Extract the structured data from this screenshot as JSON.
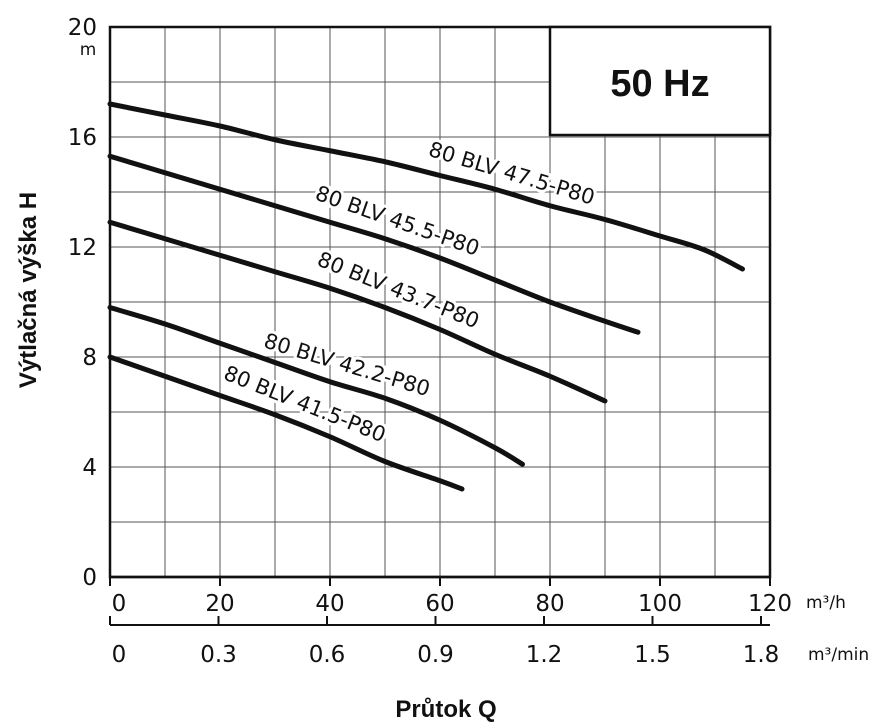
{
  "chart_data": {
    "type": "line",
    "annotation": "50 Hz",
    "xlabel": "Průtok Q",
    "ylabel": "Výtlačná výška H",
    "y_unit": "m",
    "x_unit_primary": "m³/h",
    "x_unit_secondary": "m³/min",
    "xlim": [
      0,
      120
    ],
    "ylim": [
      0,
      20
    ],
    "x_ticks": [
      "0",
      "20",
      "40",
      "60",
      "80",
      "100",
      "120"
    ],
    "x_ticks_secondary": [
      "0",
      "0.3",
      "0.6",
      "0.9",
      "1.2",
      "1.5",
      "1.8"
    ],
    "y_ticks": [
      "0",
      "4",
      "8",
      "12",
      "16",
      "20"
    ],
    "grid": true,
    "series": [
      {
        "name": "80 BLV 47.5-P80",
        "x": [
          0,
          10,
          20,
          30,
          40,
          50,
          60,
          70,
          80,
          90,
          100,
          108,
          115
        ],
        "y": [
          17.2,
          16.8,
          16.4,
          15.9,
          15.5,
          15.1,
          14.6,
          14.1,
          13.5,
          13.0,
          12.4,
          11.9,
          11.2
        ]
      },
      {
        "name": "80 BLV 45.5-P80",
        "x": [
          0,
          10,
          20,
          30,
          40,
          50,
          60,
          70,
          80,
          90,
          96
        ],
        "y": [
          15.3,
          14.7,
          14.1,
          13.5,
          12.9,
          12.3,
          11.6,
          10.8,
          10.0,
          9.3,
          8.9
        ]
      },
      {
        "name": "80 BLV 43.7-P80",
        "x": [
          0,
          10,
          20,
          30,
          40,
          50,
          60,
          70,
          80,
          90
        ],
        "y": [
          12.9,
          12.3,
          11.7,
          11.1,
          10.5,
          9.8,
          9.0,
          8.1,
          7.3,
          6.4
        ]
      },
      {
        "name": "80 BLV 42.2-P80",
        "x": [
          0,
          10,
          20,
          30,
          40,
          50,
          60,
          70,
          75
        ],
        "y": [
          9.8,
          9.2,
          8.5,
          7.8,
          7.1,
          6.5,
          5.7,
          4.7,
          4.1
        ]
      },
      {
        "name": "80 BLV 41.5-P80",
        "x": [
          0,
          10,
          20,
          30,
          40,
          50,
          60,
          64
        ],
        "y": [
          8.0,
          7.3,
          6.6,
          5.9,
          5.1,
          4.2,
          3.5,
          3.2
        ]
      }
    ]
  }
}
